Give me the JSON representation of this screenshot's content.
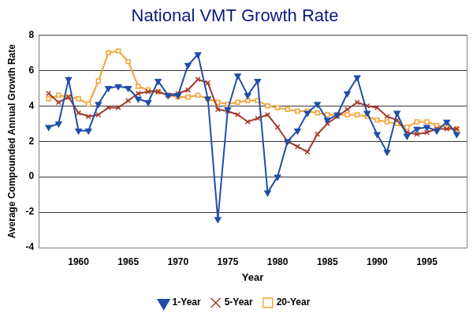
{
  "chart_data": {
    "type": "line",
    "title": "National VMT Growth Rate",
    "x_label": "Year",
    "y_label": "Average Compounded Annual Growth Rate",
    "x": [
      1957,
      1958,
      1959,
      1960,
      1961,
      1962,
      1963,
      1964,
      1965,
      1966,
      1967,
      1968,
      1969,
      1970,
      1971,
      1972,
      1973,
      1974,
      1975,
      1976,
      1977,
      1978,
      1979,
      1980,
      1981,
      1982,
      1983,
      1984,
      1985,
      1986,
      1987,
      1988,
      1989,
      1990,
      1991,
      1992,
      1993,
      1994,
      1995,
      1996,
      1997,
      1998
    ],
    "series": [
      {
        "name": "1-Year",
        "color": "#1f4ea8",
        "marker": "triangle_down",
        "values": [
          2.8,
          3.0,
          5.5,
          2.6,
          2.6,
          4.1,
          5.0,
          5.1,
          5.0,
          4.4,
          4.2,
          5.4,
          4.6,
          4.6,
          6.3,
          6.9,
          4.4,
          -2.4,
          3.8,
          5.7,
          4.6,
          5.4,
          -0.9,
          0.0,
          2.0,
          2.6,
          3.6,
          4.1,
          3.2,
          3.5,
          4.7,
          5.6,
          3.6,
          2.4,
          1.4,
          3.6,
          2.3,
          2.7,
          2.8,
          2.6,
          3.1,
          2.4
        ]
      },
      {
        "name": "5-Year",
        "color": "#a33a2a",
        "marker": "x",
        "values": [
          4.7,
          4.2,
          4.5,
          3.6,
          3.4,
          3.5,
          3.9,
          3.9,
          4.3,
          4.7,
          4.8,
          4.8,
          4.6,
          4.7,
          4.9,
          5.5,
          5.3,
          3.8,
          3.7,
          3.5,
          3.1,
          3.3,
          3.5,
          2.8,
          2.0,
          1.7,
          1.4,
          2.4,
          3.0,
          3.4,
          3.8,
          4.2,
          4.0,
          3.9,
          3.4,
          3.2,
          2.5,
          2.4,
          2.5,
          2.7,
          2.7,
          2.7
        ]
      },
      {
        "name": "20-Year",
        "color": "#f4a235",
        "marker": "square",
        "values": [
          4.4,
          4.6,
          4.5,
          4.4,
          4.1,
          5.4,
          7.0,
          7.1,
          6.5,
          5.1,
          4.9,
          4.8,
          4.6,
          4.5,
          4.5,
          4.6,
          4.4,
          4.2,
          4.1,
          4.2,
          4.3,
          4.3,
          4.0,
          3.9,
          3.8,
          3.7,
          3.7,
          3.6,
          3.5,
          3.5,
          3.5,
          3.5,
          3.4,
          3.2,
          3.1,
          3.0,
          2.8,
          3.1,
          3.1,
          2.9,
          2.8,
          2.7
        ]
      }
    ],
    "xlim": [
      1956,
      1999
    ],
    "xticks": [
      1960,
      1965,
      1970,
      1975,
      1980,
      1985,
      1990,
      1995
    ],
    "ylim": [
      -4,
      8
    ],
    "yticks": [
      -4,
      -2,
      0,
      2,
      4,
      6,
      8
    ],
    "grid": true,
    "legend": "bottom"
  }
}
